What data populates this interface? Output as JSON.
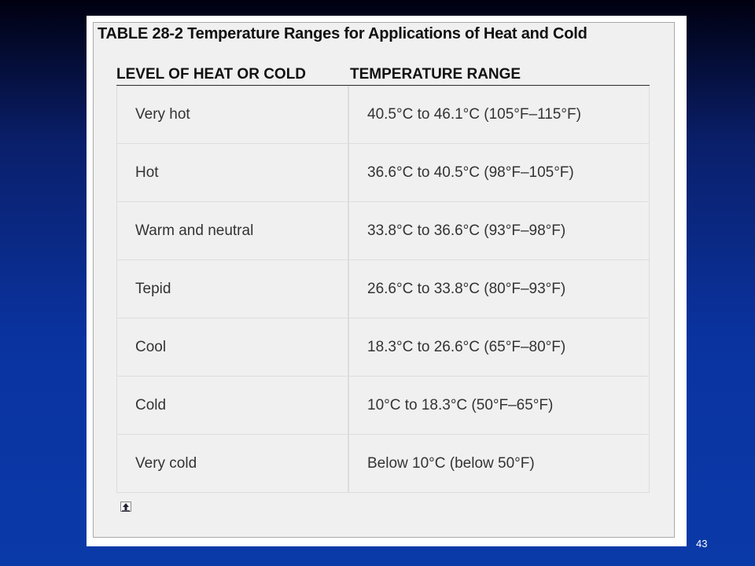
{
  "table": {
    "title": "TABLE 28-2 Temperature Ranges for Applications of Heat and Cold",
    "headers": [
      "LEVEL OF HEAT OR COLD",
      "TEMPERATURE RANGE"
    ],
    "rows": [
      [
        "Very hot",
        "40.5°C to 46.1°C (105°F–115°F)"
      ],
      [
        "Hot",
        "36.6°C to 40.5°C (98°F–105°F)"
      ],
      [
        "Warm and neutral",
        "33.8°C to 36.6°C (93°F–98°F)"
      ],
      [
        "Tepid",
        "26.6°C to 33.8°C (80°F–93°F)"
      ],
      [
        "Cool",
        "18.3°C to 26.6°C (65°F–80°F)"
      ],
      [
        "Cold",
        "10°C to 18.3°C (50°F–65°F)"
      ],
      [
        "Very cold",
        "Below 10°C (below 50°F)"
      ]
    ]
  },
  "slide_number": "43"
}
